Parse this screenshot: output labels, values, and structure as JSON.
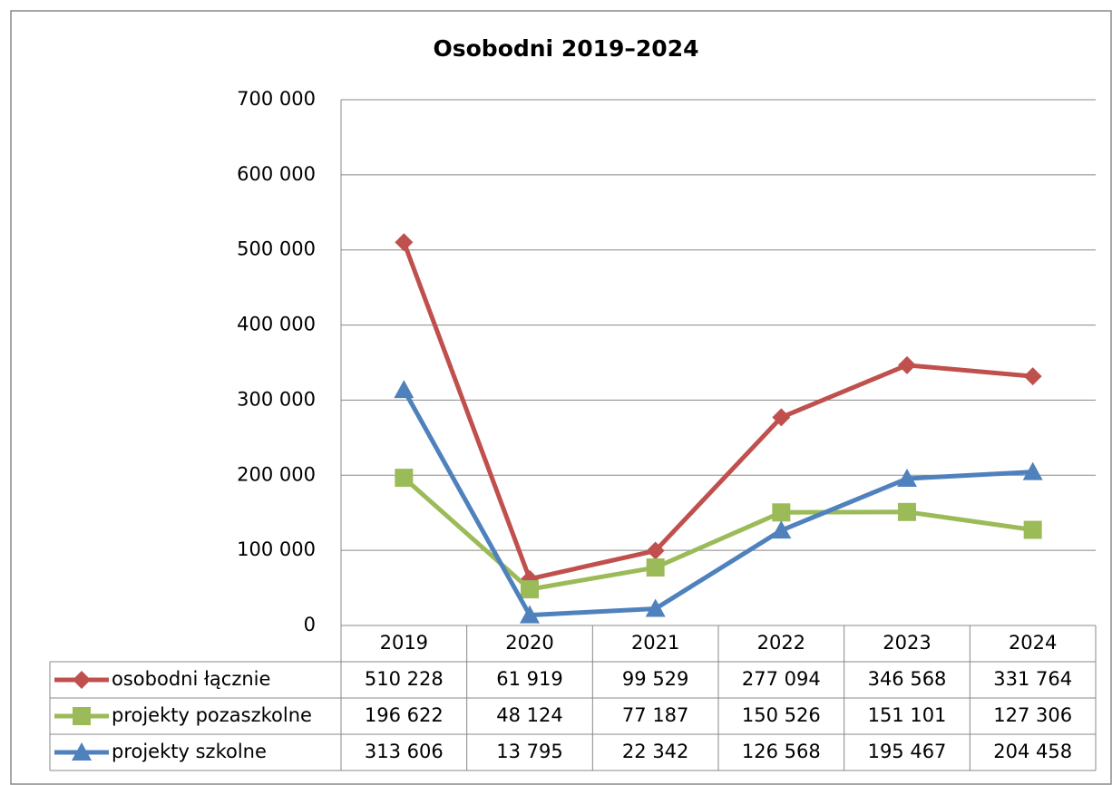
{
  "chart_data": {
    "type": "line",
    "title": "Osobodni 2019–2024",
    "categories": [
      "2019",
      "2020",
      "2021",
      "2022",
      "2023",
      "2024"
    ],
    "series": [
      {
        "name": "osobodni łącznie",
        "color": "#c0504d",
        "marker": "diamond",
        "values": [
          510228,
          61919,
          99529,
          277094,
          346568,
          331764
        ],
        "value_labels": [
          "510 228",
          "61 919",
          "99 529",
          "277 094",
          "346 568",
          "331 764"
        ]
      },
      {
        "name": "projekty pozaszkolne",
        "color": "#9bbb59",
        "marker": "square",
        "values": [
          196622,
          48124,
          77187,
          150526,
          151101,
          127306
        ],
        "value_labels": [
          "196 622",
          "48 124",
          "77 187",
          "150 526",
          "151 101",
          "127 306"
        ]
      },
      {
        "name": "projekty szkolne",
        "color": "#4f81bd",
        "marker": "triangle",
        "values": [
          313606,
          13795,
          22342,
          126568,
          195467,
          204458
        ],
        "value_labels": [
          "313 606",
          "13 795",
          "22 342",
          "126 568",
          "195 467",
          "204 458"
        ]
      }
    ],
    "ylim": [
      0,
      700000
    ],
    "yticks": [
      0,
      {
        "value": 100000,
        "label": "100 000"
      },
      {
        "value": 200000,
        "label": "200 000"
      },
      {
        "value": 300000,
        "label": "300 000"
      },
      {
        "value": 400000,
        "label": "400 000"
      },
      {
        "value": 500000,
        "label": "500 000"
      },
      {
        "value": 600000,
        "label": "600 000"
      },
      {
        "value": 700000,
        "label": "700 000"
      }
    ],
    "grid": true
  }
}
